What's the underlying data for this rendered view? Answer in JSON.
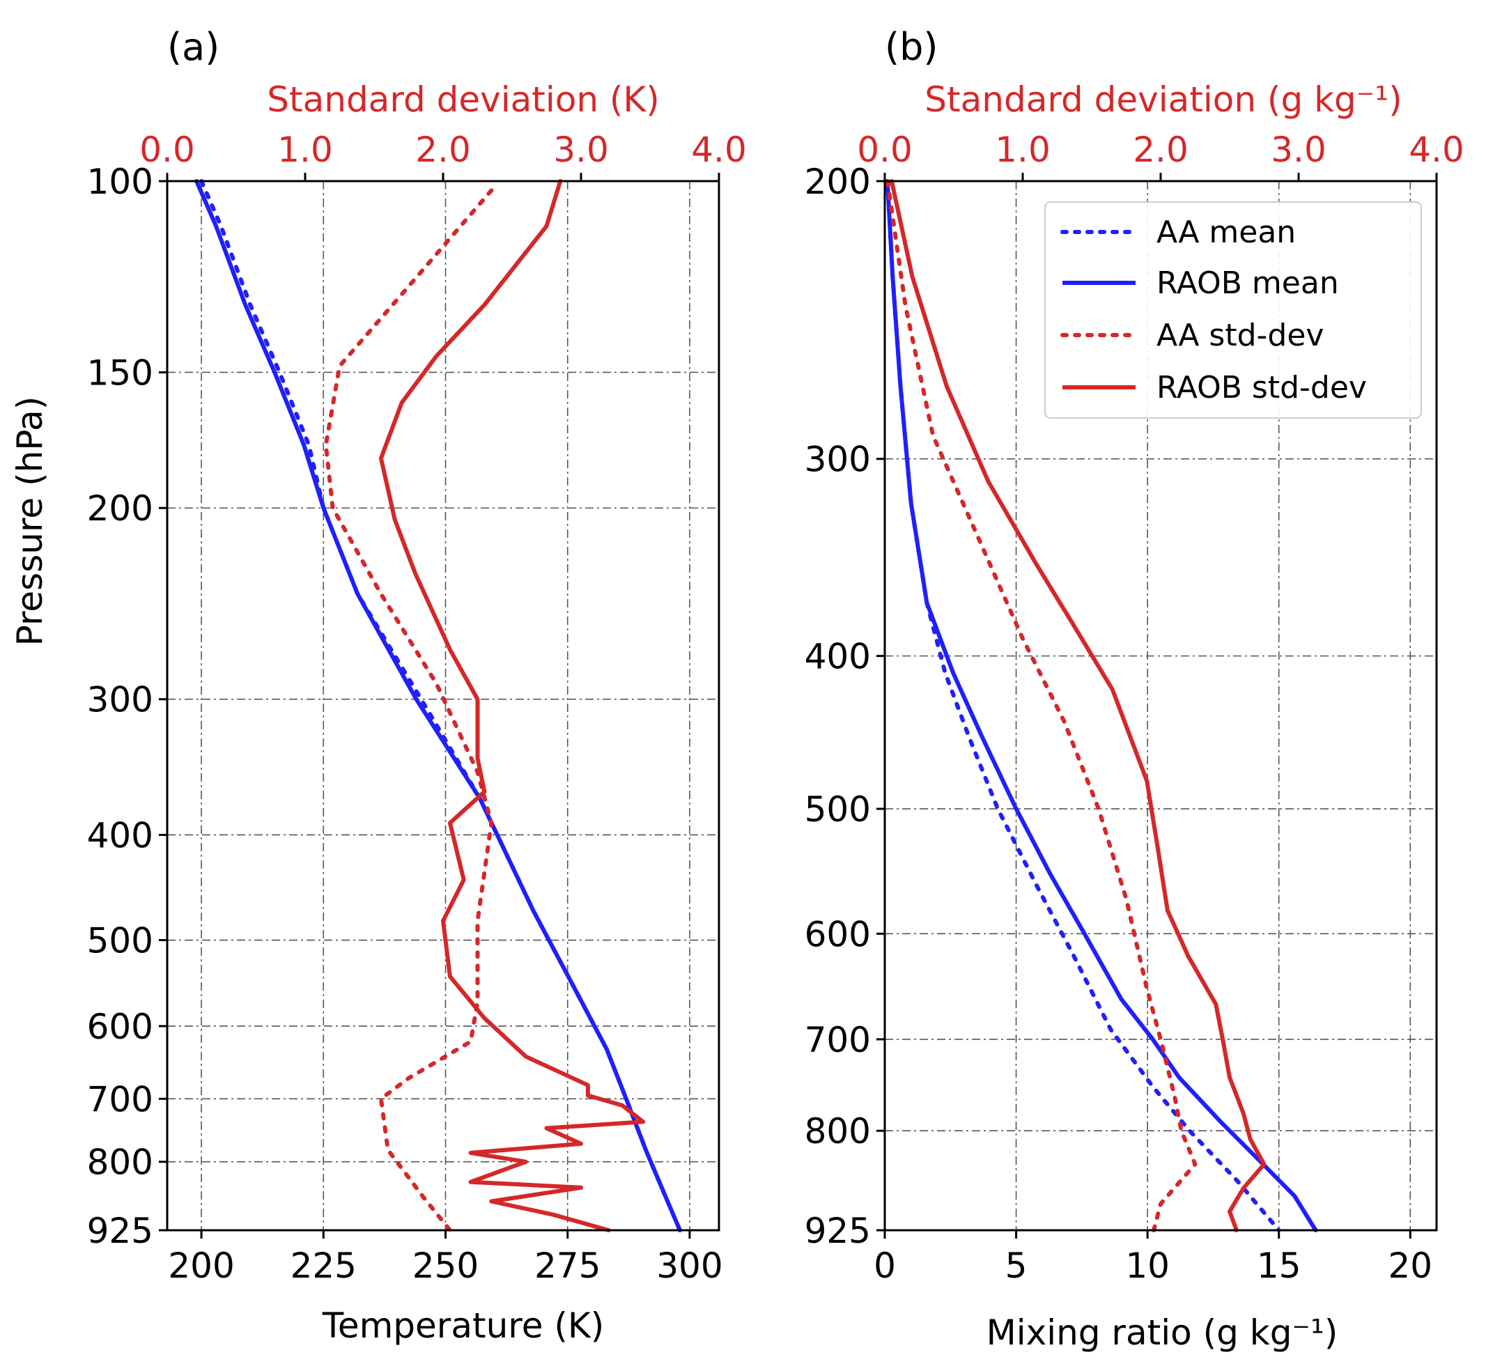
{
  "colors": {
    "mean": "#1f1fff",
    "stddev": "#d62728",
    "grid": "#555555",
    "axis": "#000000"
  },
  "chart_data": [
    {
      "type": "line",
      "panel_label": "(a)",
      "xlabel": "Temperature (K)",
      "xlim": [
        193,
        306
      ],
      "xticks": [
        "200",
        "225",
        "250",
        "275",
        "300"
      ],
      "ylabel": "Pressure (hPa)",
      "yscale": "log",
      "ylim": [
        100,
        925
      ],
      "yticks": [
        "100",
        "150",
        "200",
        "300",
        "400",
        "500",
        "600",
        "700",
        "800",
        "925"
      ],
      "top_xlabel": "Standard deviation (K)",
      "top_xlim": [
        0.0,
        4.0
      ],
      "top_xticks": [
        "0.0",
        "1.0",
        "2.0",
        "3.0",
        "4.0"
      ],
      "grid": true,
      "series": [
        {
          "name": "AA mean",
          "axis": "bottom",
          "style": "dotted",
          "color": "#1f1fff",
          "points": [
            [
              200,
              100
            ],
            [
              204,
              110
            ],
            [
              210,
              130
            ],
            [
              216,
              150
            ],
            [
              222,
              175
            ],
            [
              225,
              200
            ],
            [
              232,
              240
            ],
            [
              245,
              300
            ],
            [
              257,
              370
            ],
            [
              268,
              470
            ],
            [
              277,
              560
            ],
            [
              283,
              630
            ],
            [
              287,
              700
            ],
            [
              291,
              780
            ],
            [
              295,
              860
            ],
            [
              298,
              925
            ]
          ]
        },
        {
          "name": "RAOB mean",
          "axis": "bottom",
          "style": "solid",
          "color": "#1f1fff",
          "points": [
            [
              199,
              100
            ],
            [
              203,
              110
            ],
            [
              209,
              130
            ],
            [
              215,
              150
            ],
            [
              221,
              175
            ],
            [
              225,
              200
            ],
            [
              232,
              240
            ],
            [
              244,
              300
            ],
            [
              257,
              370
            ],
            [
              268,
              470
            ],
            [
              277,
              560
            ],
            [
              283,
              630
            ],
            [
              287,
              700
            ],
            [
              291,
              780
            ],
            [
              295,
              860
            ],
            [
              298,
              925
            ]
          ]
        },
        {
          "name": "AA std-dev",
          "axis": "top",
          "style": "dotted",
          "color": "#d62728",
          "points": [
            [
              2.35,
              102
            ],
            [
              1.75,
              125
            ],
            [
              1.25,
              148
            ],
            [
              1.15,
              175
            ],
            [
              1.2,
              200
            ],
            [
              1.55,
              240
            ],
            [
              1.95,
              290
            ],
            [
              2.25,
              350
            ],
            [
              2.35,
              390
            ],
            [
              2.25,
              480
            ],
            [
              2.25,
              570
            ],
            [
              2.2,
              620
            ],
            [
              1.75,
              670
            ],
            [
              1.55,
              700
            ],
            [
              1.6,
              780
            ],
            [
              1.85,
              860
            ],
            [
              2.05,
              925
            ]
          ]
        },
        {
          "name": "RAOB std-dev",
          "axis": "top",
          "style": "solid",
          "color": "#d62728",
          "points": [
            [
              2.85,
              100
            ],
            [
              2.75,
              110
            ],
            [
              2.3,
              130
            ],
            [
              1.95,
              145
            ],
            [
              1.7,
              160
            ],
            [
              1.55,
              180
            ],
            [
              1.65,
              205
            ],
            [
              1.8,
              230
            ],
            [
              2.05,
              270
            ],
            [
              2.25,
              300
            ],
            [
              2.25,
              340
            ],
            [
              2.3,
              365
            ],
            [
              2.05,
              390
            ],
            [
              2.15,
              440
            ],
            [
              2.0,
              480
            ],
            [
              2.05,
              540
            ],
            [
              2.3,
              590
            ],
            [
              2.6,
              640
            ],
            [
              3.05,
              680
            ],
            [
              3.05,
              695
            ],
            [
              3.3,
              710
            ],
            [
              3.45,
              735
            ],
            [
              2.75,
              745
            ],
            [
              3.0,
              770
            ],
            [
              2.2,
              785
            ],
            [
              2.6,
              800
            ],
            [
              2.2,
              835
            ],
            [
              3.0,
              845
            ],
            [
              2.35,
              870
            ],
            [
              2.8,
              895
            ],
            [
              3.2,
              925
            ]
          ]
        }
      ]
    },
    {
      "type": "line",
      "panel_label": "(b)",
      "xlabel": "Mixing ratio (g kg⁻¹)",
      "xlim": [
        0,
        21
      ],
      "xticks": [
        "0",
        "5",
        "10",
        "15",
        "20"
      ],
      "ylabel": "",
      "yscale": "log",
      "ylim": [
        200,
        925
      ],
      "yticks": [
        "200",
        "300",
        "400",
        "500",
        "600",
        "700",
        "800",
        "925"
      ],
      "top_xlabel": "Standard deviation (g kg⁻¹)",
      "top_xlim": [
        0.0,
        4.0
      ],
      "top_xticks": [
        "0.0",
        "1.0",
        "2.0",
        "3.0",
        "4.0"
      ],
      "grid": true,
      "series": [
        {
          "name": "AA mean",
          "axis": "bottom",
          "style": "dotted",
          "color": "#1f1fff",
          "points": [
            [
              0.1,
              200
            ],
            [
              0.3,
              230
            ],
            [
              0.6,
              270
            ],
            [
              1.0,
              320
            ],
            [
              1.6,
              370
            ],
            [
              2.3,
              410
            ],
            [
              3.2,
              450
            ],
            [
              4.3,
              500
            ],
            [
              5.8,
              560
            ],
            [
              7.2,
              620
            ],
            [
              8.6,
              690
            ],
            [
              10.2,
              750
            ],
            [
              11.6,
              800
            ],
            [
              13.4,
              860
            ],
            [
              15.0,
              925
            ]
          ]
        },
        {
          "name": "RAOB mean",
          "axis": "bottom",
          "style": "solid",
          "color": "#1f1fff",
          "points": [
            [
              0.1,
              200
            ],
            [
              0.3,
              230
            ],
            [
              0.6,
              270
            ],
            [
              1.0,
              320
            ],
            [
              1.6,
              370
            ],
            [
              2.6,
              410
            ],
            [
              3.7,
              450
            ],
            [
              5.0,
              500
            ],
            [
              6.3,
              550
            ],
            [
              7.6,
              600
            ],
            [
              9.0,
              660
            ],
            [
              10.2,
              700
            ],
            [
              11.2,
              740
            ],
            [
              12.8,
              790
            ],
            [
              14.4,
              840
            ],
            [
              15.6,
              880
            ],
            [
              16.4,
              925
            ]
          ]
        },
        {
          "name": "AA std-dev",
          "axis": "top",
          "style": "dotted",
          "color": "#d62728",
          "points": [
            [
              0.02,
              200
            ],
            [
              0.15,
              240
            ],
            [
              0.35,
              290
            ],
            [
              0.7,
              340
            ],
            [
              1.0,
              390
            ],
            [
              1.3,
              440
            ],
            [
              1.55,
              500
            ],
            [
              1.75,
              570
            ],
            [
              1.9,
              650
            ],
            [
              2.0,
              700
            ],
            [
              2.1,
              760
            ],
            [
              2.15,
              800
            ],
            [
              2.25,
              840
            ],
            [
              2.0,
              890
            ],
            [
              1.95,
              925
            ]
          ]
        },
        {
          "name": "RAOB std-dev",
          "axis": "top",
          "style": "solid",
          "color": "#d62728",
          "points": [
            [
              0.05,
              200
            ],
            [
              0.2,
              230
            ],
            [
              0.45,
              270
            ],
            [
              0.75,
              310
            ],
            [
              1.1,
              350
            ],
            [
              1.35,
              380
            ],
            [
              1.65,
              420
            ],
            [
              1.9,
              480
            ],
            [
              1.98,
              530
            ],
            [
              2.05,
              580
            ],
            [
              2.2,
              620
            ],
            [
              2.4,
              665
            ],
            [
              2.45,
              700
            ],
            [
              2.5,
              740
            ],
            [
              2.6,
              780
            ],
            [
              2.65,
              810
            ],
            [
              2.75,
              840
            ],
            [
              2.6,
              870
            ],
            [
              2.5,
              900
            ],
            [
              2.55,
              925
            ]
          ]
        }
      ],
      "legend": {
        "placement": "top-right",
        "entries": [
          "AA mean",
          "RAOB mean",
          "AA std-dev",
          "RAOB std-dev"
        ]
      }
    }
  ]
}
